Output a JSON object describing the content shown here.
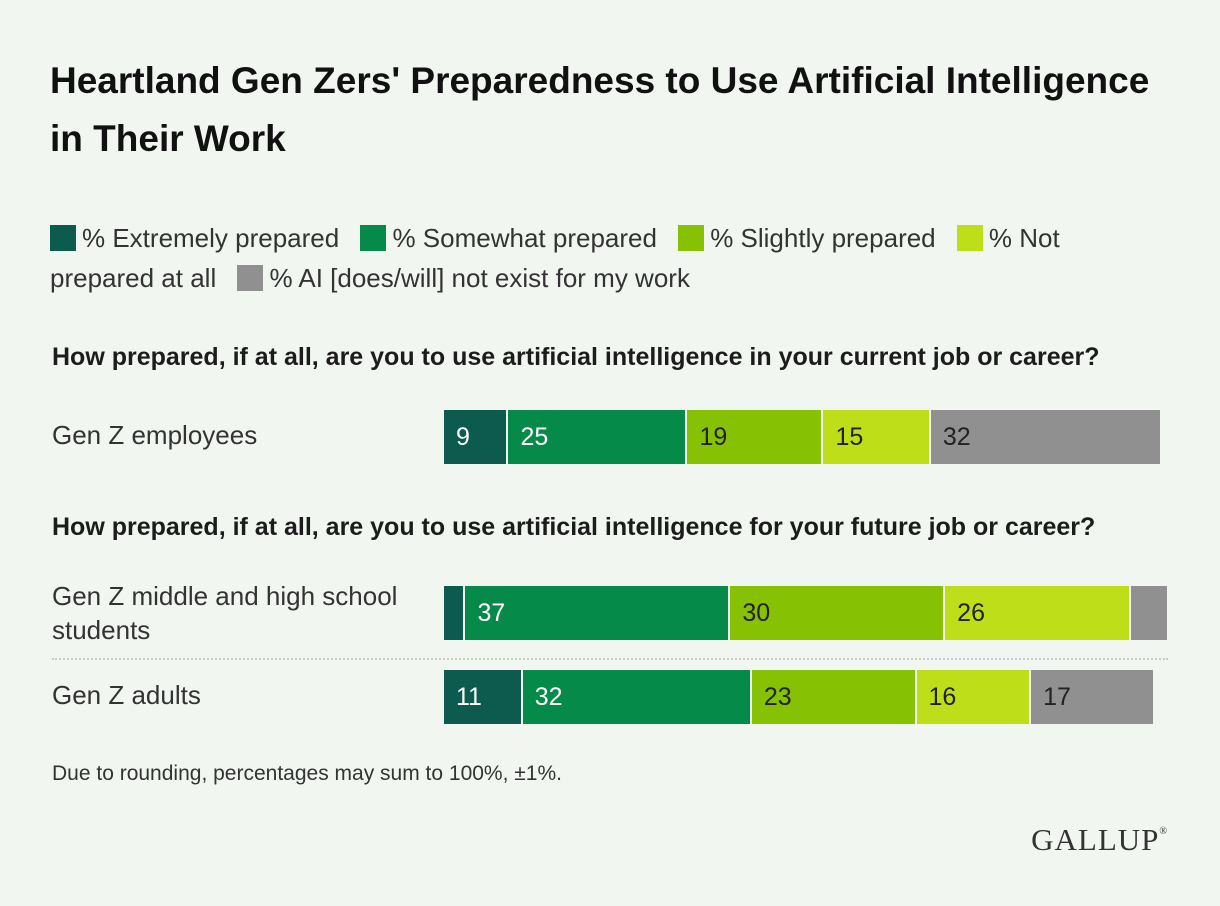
{
  "title": "Heartland Gen Zers' Preparedness to Use Artificial Intelligence in Their Work",
  "legend": [
    {
      "label": "% Extremely prepared",
      "color": "#0d5a4f"
    },
    {
      "label": "% Somewhat prepared",
      "color": "#058a4a"
    },
    {
      "label": "% Slightly prepared",
      "color": "#86c104"
    },
    {
      "label": "% Not prepared at all",
      "color": "#bfde1a"
    },
    {
      "label": "% AI [does/will] not exist for my work",
      "color": "#909090"
    }
  ],
  "questions": [
    "How prepared, if at all, are you to use artificial intelligence in your current job or career?",
    "How prepared, if at all, are you to use artificial intelligence for your future job or career?"
  ],
  "chart_data": {
    "type": "bar",
    "stacked": true,
    "orientation": "horizontal",
    "title": "Heartland Gen Zers' Preparedness to Use Artificial Intelligence in Their Work",
    "categories": [
      "Gen Z employees",
      "Gen Z middle and high school students",
      "Gen Z adults"
    ],
    "series": [
      {
        "name": "% Extremely prepared",
        "values": [
          9,
          3,
          11
        ],
        "labels": [
          "9",
          "",
          "11"
        ]
      },
      {
        "name": "% Somewhat prepared",
        "values": [
          25,
          37,
          32
        ],
        "labels": [
          "25",
          "37",
          "32"
        ]
      },
      {
        "name": "% Slightly prepared",
        "values": [
          19,
          30,
          23
        ],
        "labels": [
          "19",
          "30",
          "23"
        ]
      },
      {
        "name": "% Not prepared at all",
        "values": [
          15,
          26,
          16
        ],
        "labels": [
          "15",
          "26",
          "16"
        ]
      },
      {
        "name": "% AI [does/will] not exist for my work",
        "values": [
          32,
          5,
          17
        ],
        "labels": [
          "32",
          "",
          "17"
        ]
      }
    ],
    "xlim": [
      0,
      100
    ]
  },
  "footnote": "Due to rounding, percentages may sum to 100%, ±1%.",
  "logo": "GALLUP"
}
